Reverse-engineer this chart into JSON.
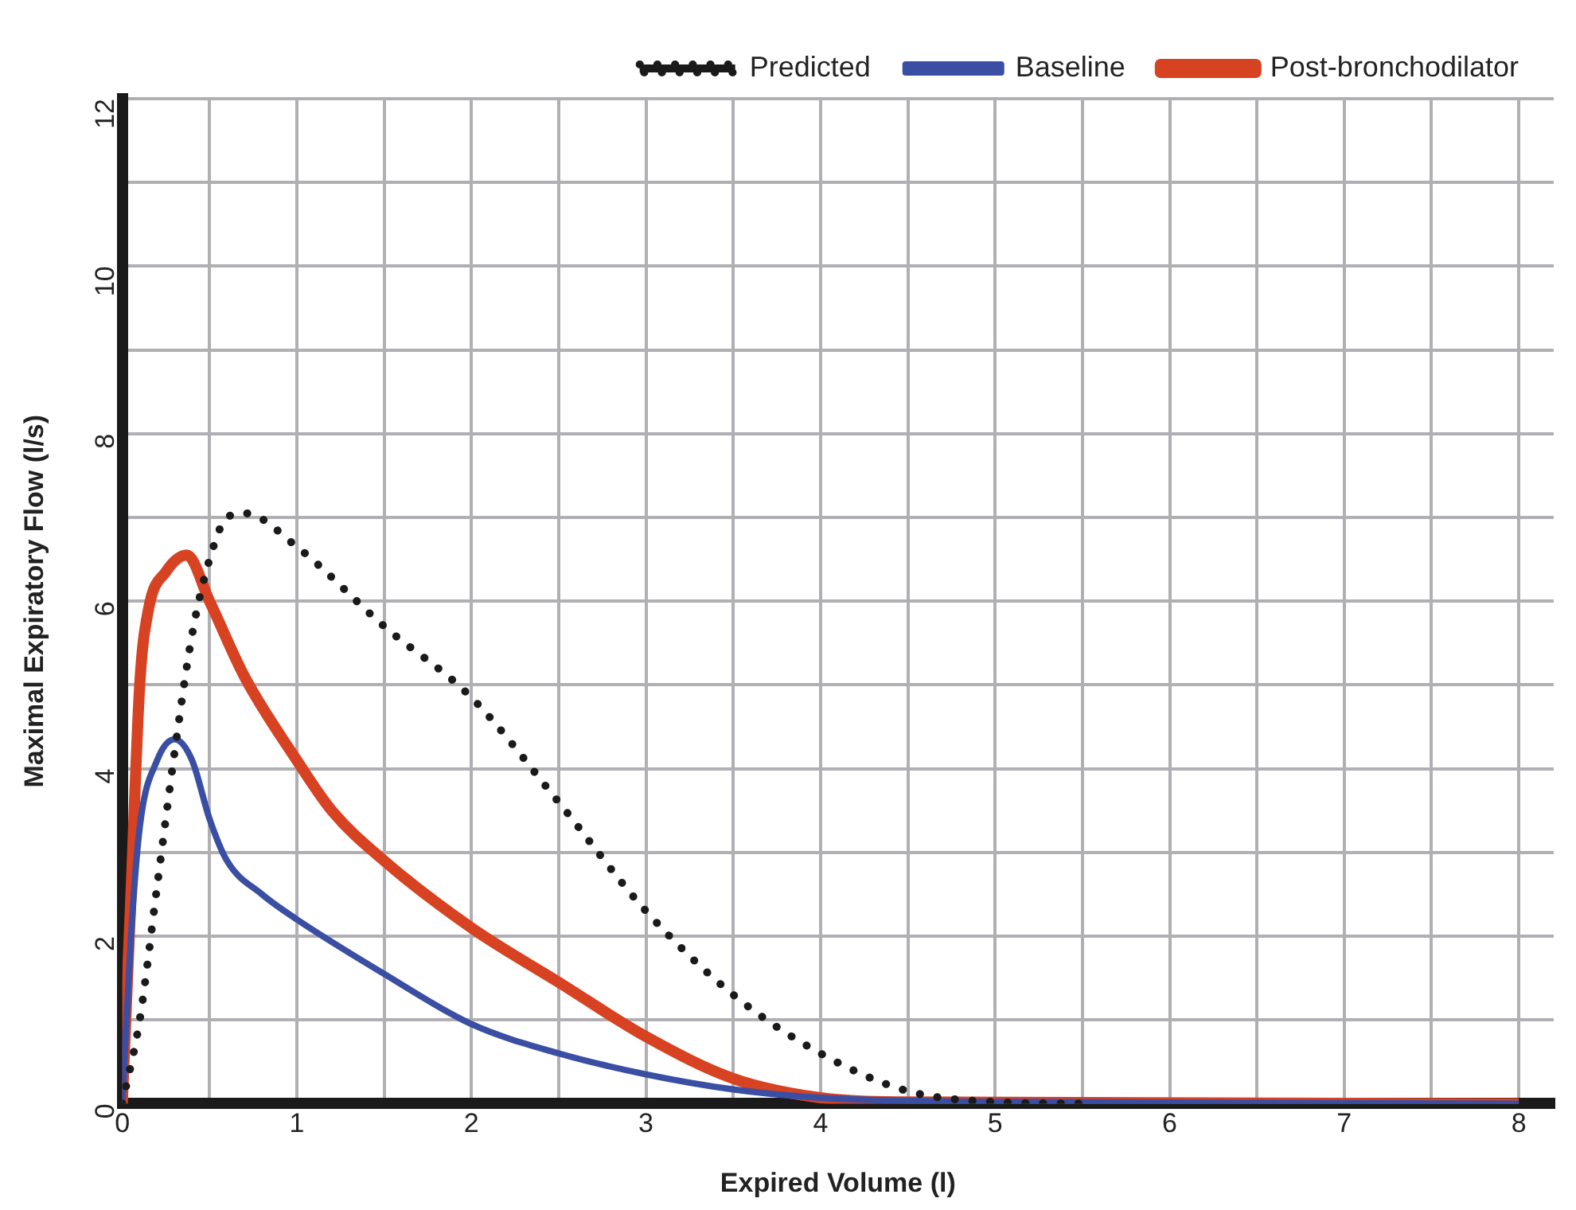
{
  "chart_data": {
    "type": "line",
    "xlabel": "Expired Volume (l)",
    "ylabel": "Maximal Expiratory Flow (l/s)",
    "xlim": [
      0,
      8.2
    ],
    "xticks": [
      0,
      {
        "value": 0.5,
        "label": null
      },
      1,
      {
        "value": 1.5,
        "label": null
      },
      2,
      {
        "value": 2.5,
        "label": null
      },
      3,
      {
        "value": 3.5,
        "label": null
      },
      4,
      {
        "value": 4.5,
        "label": null
      },
      5,
      {
        "value": 5.5,
        "label": null
      },
      6,
      {
        "value": 6.5,
        "label": null
      },
      7,
      {
        "value": 7.5,
        "label": null
      },
      8
    ],
    "ylim": [
      0,
      12
    ],
    "yticks": [
      0,
      {
        "value": 1,
        "label": null
      },
      2,
      {
        "value": 3,
        "label": null
      },
      4,
      {
        "value": 5,
        "label": null
      },
      6,
      {
        "value": 7,
        "label": null
      },
      8,
      {
        "value": 9,
        "label": null
      },
      10,
      {
        "value": 11,
        "label": null
      },
      12
    ],
    "grid": true,
    "legend": "top right",
    "marker": "none",
    "series": [
      {
        "name": "Predicted",
        "color": "#1a1a1a",
        "line_style": "dotted",
        "x": [
          0,
          0.1,
          0.2,
          0.3,
          0.4,
          0.5,
          0.6,
          0.7,
          1,
          1.5,
          2,
          2.5,
          3,
          3.5,
          4,
          4.5,
          5,
          5.5
        ],
        "values": [
          0,
          1.0,
          2.6,
          4.2,
          5.6,
          6.5,
          7.0,
          7.05,
          6.65,
          5.7,
          4.85,
          3.6,
          2.3,
          1.3,
          0.6,
          0.15,
          0.02,
          0
        ]
      },
      {
        "name": "Baseline",
        "color": "#3a4fa3",
        "line_style": "solid",
        "x": [
          0,
          0.05,
          0.1,
          0.2,
          0.3,
          0.4,
          0.5,
          0.6,
          0.8,
          1,
          1.5,
          2,
          2.5,
          3,
          3.5,
          4,
          5,
          8
        ],
        "values": [
          0,
          2.0,
          3.3,
          4.1,
          4.35,
          4.1,
          3.4,
          2.9,
          2.5,
          2.2,
          1.55,
          0.95,
          0.6,
          0.35,
          0.17,
          0.07,
          0.02,
          0
        ]
      },
      {
        "name": "Post-bronchodilator",
        "color": "#d74222",
        "line_style": "solid",
        "x": [
          0,
          0.05,
          0.1,
          0.15,
          0.25,
          0.37,
          0.5,
          0.7,
          1,
          1.2,
          1.5,
          2,
          2.5,
          3,
          3.5,
          4,
          4.5,
          8
        ],
        "values": [
          0,
          2.5,
          5.0,
          5.9,
          6.35,
          6.55,
          6.0,
          5.1,
          4.1,
          3.5,
          2.9,
          2.1,
          1.45,
          0.8,
          0.3,
          0.07,
          0.02,
          0
        ]
      }
    ]
  }
}
